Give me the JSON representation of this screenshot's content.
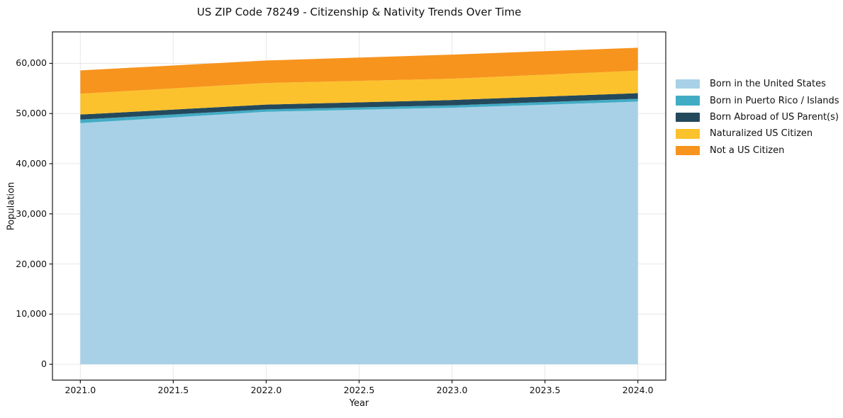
{
  "chart_data": {
    "type": "area",
    "stacked": true,
    "title": "US ZIP Code 78249 - Citizenship & Nativity Trends Over Time",
    "xlabel": "Year",
    "ylabel": "Population",
    "x": [
      2021,
      2022,
      2023,
      2024
    ],
    "series": [
      {
        "name": "Born in the United States",
        "color": "#A8D1E7",
        "values": [
          48100,
          50350,
          51150,
          52380
        ]
      },
      {
        "name": "Born in Puerto Rico / Islands",
        "color": "#42ACC5",
        "values": [
          700,
          480,
          480,
          560
        ]
      },
      {
        "name": "Born Abroad of US Parent(s)",
        "color": "#24495C",
        "values": [
          1000,
          950,
          1070,
          1130
        ]
      },
      {
        "name": "Naturalized US Citizen",
        "color": "#FCC22D",
        "values": [
          4150,
          4320,
          4240,
          4490
        ]
      },
      {
        "name": "Not a US Citizen",
        "color": "#F7941E",
        "values": [
          4650,
          4480,
          4810,
          4570
        ]
      }
    ],
    "totals_by_year": [
      58600,
      60580,
      61750,
      63130
    ],
    "xlim": [
      2020.85,
      2024.15
    ],
    "ylim": [
      -3156,
      66286
    ],
    "xticks": {
      "values": [
        2021.0,
        2021.5,
        2022.0,
        2022.5,
        2023.0,
        2023.5,
        2024.0
      ],
      "labels": [
        "2021.0",
        "2021.5",
        "2022.0",
        "2022.5",
        "2023.0",
        "2023.5",
        "2024.0"
      ]
    },
    "yticks": {
      "values": [
        0,
        10000,
        20000,
        30000,
        40000,
        50000,
        60000
      ],
      "labels": [
        "0",
        "10,000",
        "20,000",
        "30,000",
        "40,000",
        "50,000",
        "60,000"
      ]
    },
    "grid": true,
    "legend_position": "right",
    "colors": {
      "grid": "#E7E7E7",
      "spine": "#1a1a1a",
      "text": "#111111",
      "background": "#FFFFFF"
    }
  }
}
